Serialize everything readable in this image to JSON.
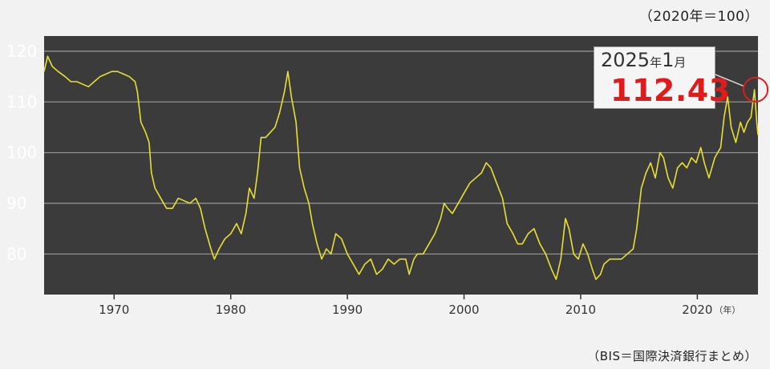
{
  "header": {
    "base_note": "（2020年＝100）"
  },
  "footer": {
    "source_note": "（BIS＝国際決済銀行まとめ）"
  },
  "callout": {
    "year": "2025",
    "year_unit": "年",
    "month": "1",
    "month_unit": "月",
    "value": "112.43"
  },
  "colors": {
    "plot_background": "#3b3b3b",
    "line": "#e8e030",
    "grid": "#9a9a9a",
    "axis_text": "#ffffff",
    "x_tick_text": "#333333",
    "highlight_circle": "#e01b1b"
  },
  "chart_data": {
    "type": "line",
    "title": "",
    "xlabel": "（年）",
    "ylabel": "",
    "xlim": [
      1964,
      2025.2
    ],
    "ylim": [
      72,
      123
    ],
    "y_ticks": [
      80,
      90,
      100,
      110,
      120
    ],
    "x_ticks": [
      1970,
      1980,
      1990,
      2000,
      2010,
      2020
    ],
    "x_tick_labels": [
      "1970",
      "1980",
      "1990",
      "2000",
      "2010",
      "2020"
    ],
    "grid": "horizontal",
    "series": [
      {
        "values": [
          [
            1964.0,
            116
          ],
          [
            1964.3,
            119
          ],
          [
            1964.7,
            117
          ],
          [
            1965.2,
            116
          ],
          [
            1965.8,
            115
          ],
          [
            1966.3,
            114
          ],
          [
            1966.8,
            114
          ],
          [
            1967.3,
            113.5
          ],
          [
            1967.8,
            113
          ],
          [
            1968.3,
            114
          ],
          [
            1968.8,
            115
          ],
          [
            1969.3,
            115.5
          ],
          [
            1969.8,
            116
          ],
          [
            1970.3,
            116
          ],
          [
            1970.8,
            115.5
          ],
          [
            1971.3,
            115
          ],
          [
            1971.8,
            114
          ],
          [
            1972.0,
            112
          ],
          [
            1972.3,
            106
          ],
          [
            1972.7,
            104
          ],
          [
            1973.0,
            102
          ],
          [
            1973.2,
            96
          ],
          [
            1973.5,
            93
          ],
          [
            1974.0,
            91
          ],
          [
            1974.5,
            89
          ],
          [
            1975.0,
            89
          ],
          [
            1975.5,
            91
          ],
          [
            1976.0,
            90.5
          ],
          [
            1976.5,
            90
          ],
          [
            1977.0,
            91
          ],
          [
            1977.4,
            89
          ],
          [
            1977.8,
            85
          ],
          [
            1978.3,
            81
          ],
          [
            1978.6,
            79
          ],
          [
            1979.0,
            81
          ],
          [
            1979.5,
            83
          ],
          [
            1980.0,
            84
          ],
          [
            1980.5,
            86
          ],
          [
            1980.9,
            84
          ],
          [
            1981.3,
            88
          ],
          [
            1981.6,
            93
          ],
          [
            1982.0,
            91
          ],
          [
            1982.3,
            96
          ],
          [
            1982.6,
            103
          ],
          [
            1983.0,
            103
          ],
          [
            1983.4,
            104
          ],
          [
            1983.8,
            105
          ],
          [
            1984.2,
            108
          ],
          [
            1984.6,
            112
          ],
          [
            1984.9,
            116
          ],
          [
            1985.2,
            111
          ],
          [
            1985.6,
            106
          ],
          [
            1985.9,
            97
          ],
          [
            1986.3,
            93
          ],
          [
            1986.7,
            90
          ],
          [
            1987.0,
            86
          ],
          [
            1987.4,
            82
          ],
          [
            1987.8,
            79
          ],
          [
            1988.2,
            81
          ],
          [
            1988.6,
            80
          ],
          [
            1989.0,
            84
          ],
          [
            1989.5,
            83
          ],
          [
            1990.0,
            80
          ],
          [
            1990.5,
            78
          ],
          [
            1991.0,
            76
          ],
          [
            1991.5,
            78
          ],
          [
            1992.0,
            79
          ],
          [
            1992.5,
            76
          ],
          [
            1993.0,
            77
          ],
          [
            1993.5,
            79
          ],
          [
            1994.0,
            78
          ],
          [
            1994.5,
            79
          ],
          [
            1995.0,
            79
          ],
          [
            1995.3,
            76
          ],
          [
            1995.7,
            79
          ],
          [
            1996.0,
            80
          ],
          [
            1996.5,
            80
          ],
          [
            1997.0,
            82
          ],
          [
            1997.5,
            84
          ],
          [
            1998.0,
            87
          ],
          [
            1998.3,
            90
          ],
          [
            1998.6,
            89
          ],
          [
            1999.0,
            88
          ],
          [
            1999.5,
            90
          ],
          [
            2000.0,
            92
          ],
          [
            2000.5,
            94
          ],
          [
            2001.0,
            95
          ],
          [
            2001.5,
            96
          ],
          [
            2001.9,
            98
          ],
          [
            2002.3,
            97
          ],
          [
            2002.8,
            94
          ],
          [
            2003.3,
            91
          ],
          [
            2003.7,
            86
          ],
          [
            2004.2,
            84
          ],
          [
            2004.6,
            82
          ],
          [
            2005.0,
            82
          ],
          [
            2005.5,
            84
          ],
          [
            2006.0,
            85
          ],
          [
            2006.5,
            82
          ],
          [
            2007.0,
            80
          ],
          [
            2007.5,
            77
          ],
          [
            2007.9,
            75
          ],
          [
            2008.3,
            79
          ],
          [
            2008.7,
            87
          ],
          [
            2009.0,
            85
          ],
          [
            2009.4,
            80
          ],
          [
            2009.8,
            79
          ],
          [
            2010.2,
            82
          ],
          [
            2010.6,
            80
          ],
          [
            2011.0,
            77
          ],
          [
            2011.3,
            75
          ],
          [
            2011.7,
            76
          ],
          [
            2012.0,
            78
          ],
          [
            2012.5,
            79
          ],
          [
            2013.0,
            79
          ],
          [
            2013.5,
            79
          ],
          [
            2014.0,
            80
          ],
          [
            2014.5,
            81
          ],
          [
            2014.8,
            85
          ],
          [
            2015.2,
            93
          ],
          [
            2015.6,
            96
          ],
          [
            2016.0,
            98
          ],
          [
            2016.4,
            95
          ],
          [
            2016.8,
            100
          ],
          [
            2017.1,
            99
          ],
          [
            2017.5,
            95
          ],
          [
            2017.9,
            93
          ],
          [
            2018.3,
            97
          ],
          [
            2018.7,
            98
          ],
          [
            2019.1,
            97
          ],
          [
            2019.5,
            99
          ],
          [
            2019.9,
            98
          ],
          [
            2020.3,
            101
          ],
          [
            2020.6,
            98
          ],
          [
            2021.0,
            95
          ],
          [
            2021.5,
            99
          ],
          [
            2022.0,
            101
          ],
          [
            2022.3,
            107
          ],
          [
            2022.6,
            111
          ],
          [
            2022.9,
            105
          ],
          [
            2023.3,
            102
          ],
          [
            2023.7,
            106
          ],
          [
            2024.0,
            104
          ],
          [
            2024.3,
            106
          ],
          [
            2024.6,
            107
          ],
          [
            2024.9,
            112.4
          ],
          [
            2025.1,
            106
          ],
          [
            2025.2,
            103.5
          ]
        ]
      }
    ],
    "highlight_point": {
      "x": 2025.0,
      "y": 112.43
    }
  }
}
